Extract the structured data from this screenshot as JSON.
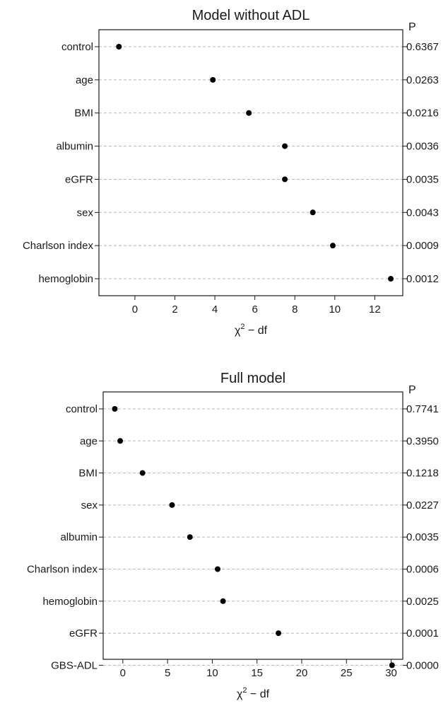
{
  "chart_data": [
    {
      "type": "scatter",
      "title": "Model without ADL",
      "xlabel_symbol": "χ",
      "xlabel_sup": "2",
      "xlabel_rest": " − df",
      "p_header": "P",
      "xlim": [
        -1.8,
        13.4
      ],
      "xticks": [
        0,
        2,
        4,
        6,
        8,
        10,
        12
      ],
      "grid": "horizontal dashed",
      "categories": [
        "control",
        "age",
        "BMI",
        "albumin",
        "eGFR",
        "sex",
        "Charlson index",
        "hemoglobin"
      ],
      "values": [
        -0.8,
        3.9,
        5.7,
        7.5,
        7.5,
        8.9,
        9.9,
        12.8
      ],
      "p_values": [
        "0.6367",
        "0.0263",
        "0.0216",
        "0.0036",
        "0.0035",
        "0.0043",
        "0.0009",
        "0.0012"
      ]
    },
    {
      "type": "scatter",
      "title": "Full model",
      "xlabel_symbol": "χ",
      "xlabel_sup": "2",
      "xlabel_rest": " − df",
      "p_header": "P",
      "xlim": [
        -2.2,
        31.3
      ],
      "xticks": [
        0,
        5,
        10,
        15,
        20,
        25,
        30
      ],
      "grid": "horizontal dashed",
      "categories": [
        "control",
        "age",
        "BMI",
        "sex",
        "albumin",
        "Charlson index",
        "hemoglobin",
        "eGFR",
        "GBS-ADL"
      ],
      "values": [
        -0.9,
        -0.3,
        2.2,
        5.5,
        7.5,
        10.6,
        11.2,
        17.4,
        30.1
      ],
      "p_values": [
        "0.7741",
        "0.3950",
        "0.1218",
        "0.0227",
        "0.0035",
        "0.0006",
        "0.0025",
        "0.0001",
        "0.0000"
      ]
    }
  ]
}
